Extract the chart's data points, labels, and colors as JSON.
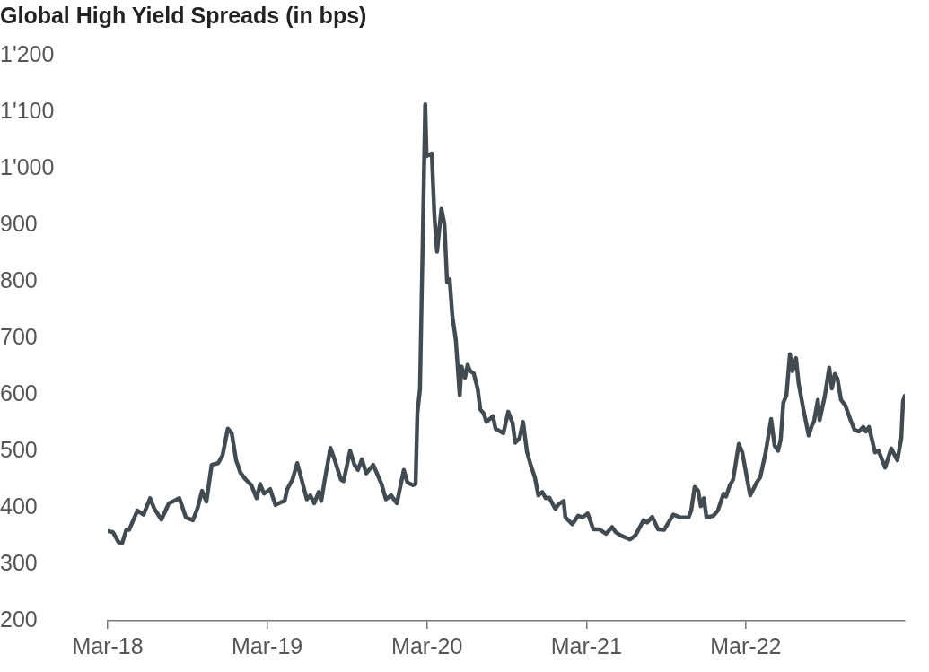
{
  "chart_data": {
    "type": "line",
    "title": "Global High Yield Spreads (in bps)",
    "x": [
      "2018-03-01",
      "2018-03-13",
      "2018-03-26",
      "2018-04-03",
      "2018-04-13",
      "2018-04-19",
      "2018-05-08",
      "2018-05-22",
      "2018-06-06",
      "2018-06-16",
      "2018-07-02",
      "2018-07-19",
      "2018-08-02",
      "2018-08-12",
      "2018-08-27",
      "2018-09-12",
      "2018-09-23",
      "2018-10-03",
      "2018-10-13",
      "2018-10-25",
      "2018-11-09",
      "2018-11-19",
      "2018-12-01",
      "2018-12-10",
      "2018-12-20",
      "2018-12-30",
      "2019-01-11",
      "2019-01-24",
      "2019-02-05",
      "2019-02-13",
      "2019-02-22",
      "2019-03-08",
      "2019-03-20",
      "2019-04-02",
      "2019-04-10",
      "2019-04-16",
      "2019-04-28",
      "2019-05-09",
      "2019-05-19",
      "2019-05-31",
      "2019-06-08",
      "2019-06-17",
      "2019-06-27",
      "2019-07-03",
      "2019-07-11",
      "2019-07-24",
      "2019-08-03",
      "2019-08-17",
      "2019-08-23",
      "2019-09-07",
      "2019-09-17",
      "2019-09-25",
      "2019-10-04",
      "2019-10-14",
      "2019-10-30",
      "2019-11-18",
      "2019-11-28",
      "2019-12-10",
      "2019-12-23",
      "2020-01-08",
      "2020-01-16",
      "2020-01-29",
      "2020-02-04",
      "2020-02-08",
      "2020-02-14",
      "2020-02-26",
      "2020-02-29",
      "2020-03-12",
      "2020-03-18",
      "2020-03-24",
      "2020-04-03",
      "2020-04-10",
      "2020-04-16",
      "2020-04-22",
      "2020-04-28",
      "2020-05-06",
      "2020-05-15",
      "2020-05-19",
      "2020-05-27",
      "2020-06-02",
      "2020-06-08",
      "2020-06-16",
      "2020-06-25",
      "2020-07-01",
      "2020-07-09",
      "2020-07-15",
      "2020-07-30",
      "2020-08-05",
      "2020-08-23",
      "2020-09-03",
      "2020-09-13",
      "2020-09-19",
      "2020-09-29",
      "2020-10-07",
      "2020-10-16",
      "2020-10-24",
      "2020-11-03",
      "2020-11-11",
      "2020-11-20",
      "2020-11-28",
      "2020-12-06",
      "2020-12-20",
      "2020-12-27",
      "2021-01-08",
      "2021-01-12",
      "2021-01-28",
      "2021-02-10",
      "2021-02-20",
      "2021-03-04",
      "2021-03-17",
      "2021-03-31",
      "2021-04-15",
      "2021-04-29",
      "2021-05-07",
      "2021-05-19",
      "2021-06-09",
      "2021-06-21",
      "2021-07-10",
      "2021-07-18",
      "2021-07-30",
      "2021-08-12",
      "2021-08-26",
      "2021-09-16",
      "2021-10-02",
      "2021-10-21",
      "2021-10-27",
      "2021-11-04",
      "2021-11-12",
      "2021-11-18",
      "2021-11-25",
      "2021-12-01",
      "2021-12-17",
      "2021-12-27",
      "2022-01-09",
      "2022-01-15",
      "2022-01-23",
      "2022-01-31",
      "2022-02-13",
      "2022-02-21",
      "2022-03-11",
      "2022-03-26",
      "2022-04-03",
      "2022-04-15",
      "2022-04-28",
      "2022-05-06",
      "2022-05-14",
      "2022-05-20",
      "2022-05-26",
      "2022-06-02",
      "2022-06-10",
      "2022-06-16",
      "2022-06-24",
      "2022-06-30",
      "2022-07-11",
      "2022-07-23",
      "2022-07-31",
      "2022-08-04",
      "2022-08-13",
      "2022-08-17",
      "2022-08-29",
      "2022-09-08",
      "2022-09-14",
      "2022-09-21",
      "2022-09-27",
      "2022-10-05",
      "2022-10-15",
      "2022-10-26",
      "2022-11-05",
      "2022-11-15",
      "2022-11-25",
      "2022-12-01",
      "2022-12-08",
      "2022-12-22",
      "2022-12-30",
      "2023-01-14",
      "2023-01-28",
      "2023-02-11",
      "2023-02-20",
      "2023-02-24",
      "2023-02-28"
    ],
    "series": [
      {
        "color": "#414b51",
        "values": [
          359,
          357,
          339,
          337,
          362,
          361,
          395,
          388,
          417,
          398,
          379,
          408,
          413,
          417,
          383,
          378,
          400,
          430,
          411,
          476,
          479,
          493,
          540,
          532,
          484,
          462,
          450,
          440,
          417,
          442,
          425,
          433,
          405,
          410,
          412,
          433,
          450,
          479,
          450,
          415,
          422,
          408,
          428,
          412,
          450,
          506,
          484,
          450,
          447,
          501,
          476,
          467,
          486,
          461,
          476,
          442,
          415,
          422,
          408,
          467,
          445,
          440,
          442,
          567,
          610,
          1114,
          1022,
          1027,
          917,
          853,
          929,
          902,
          799,
          804,
          740,
          697,
          599,
          650,
          630,
          653,
          642,
          638,
          611,
          574,
          567,
          552,
          562,
          540,
          532,
          570,
          550,
          515,
          523,
          552,
          499,
          477,
          454,
          422,
          428,
          417,
          418,
          398,
          406,
          412,
          383,
          371,
          386,
          383,
          390,
          362,
          362,
          354,
          366,
          357,
          351,
          344,
          351,
          378,
          374,
          384,
          362,
          361,
          388,
          383,
          383,
          395,
          437,
          430,
          403,
          417,
          383,
          386,
          395,
          425,
          420,
          439,
          450,
          513,
          498,
          422,
          445,
          454,
          496,
          557,
          510,
          501,
          521,
          586,
          599,
          672,
          642,
          665,
          620,
          574,
          528,
          547,
          552,
          591,
          555,
          598,
          648,
          611,
          637,
          628,
          591,
          581,
          557,
          538,
          535,
          543,
          535,
          543,
          498,
          501,
          471,
          505,
          484,
          523,
          589,
          598
        ]
      }
    ],
    "xlim": [
      "2018-03-01",
      "2023-02-28"
    ],
    "xticks": [
      {
        "value": "2018-03",
        "label": "Mar-18"
      },
      {
        "value": "2019-03",
        "label": "Mar-19"
      },
      {
        "value": "2020-03",
        "label": "Mar-20"
      },
      {
        "value": "2021-03",
        "label": "Mar-21"
      },
      {
        "value": "2022-03",
        "label": "Mar-22"
      }
    ],
    "ylim": [
      200,
      1200
    ],
    "yticks": [
      200,
      300,
      400,
      500,
      600,
      700,
      800,
      900,
      {
        "value": 1000,
        "label": "1'000"
      },
      {
        "value": 1100,
        "label": "1'100"
      },
      {
        "value": 1200,
        "label": "1'200"
      }
    ],
    "grid": false,
    "legend": false,
    "marker": "none",
    "line_style": "solid"
  }
}
